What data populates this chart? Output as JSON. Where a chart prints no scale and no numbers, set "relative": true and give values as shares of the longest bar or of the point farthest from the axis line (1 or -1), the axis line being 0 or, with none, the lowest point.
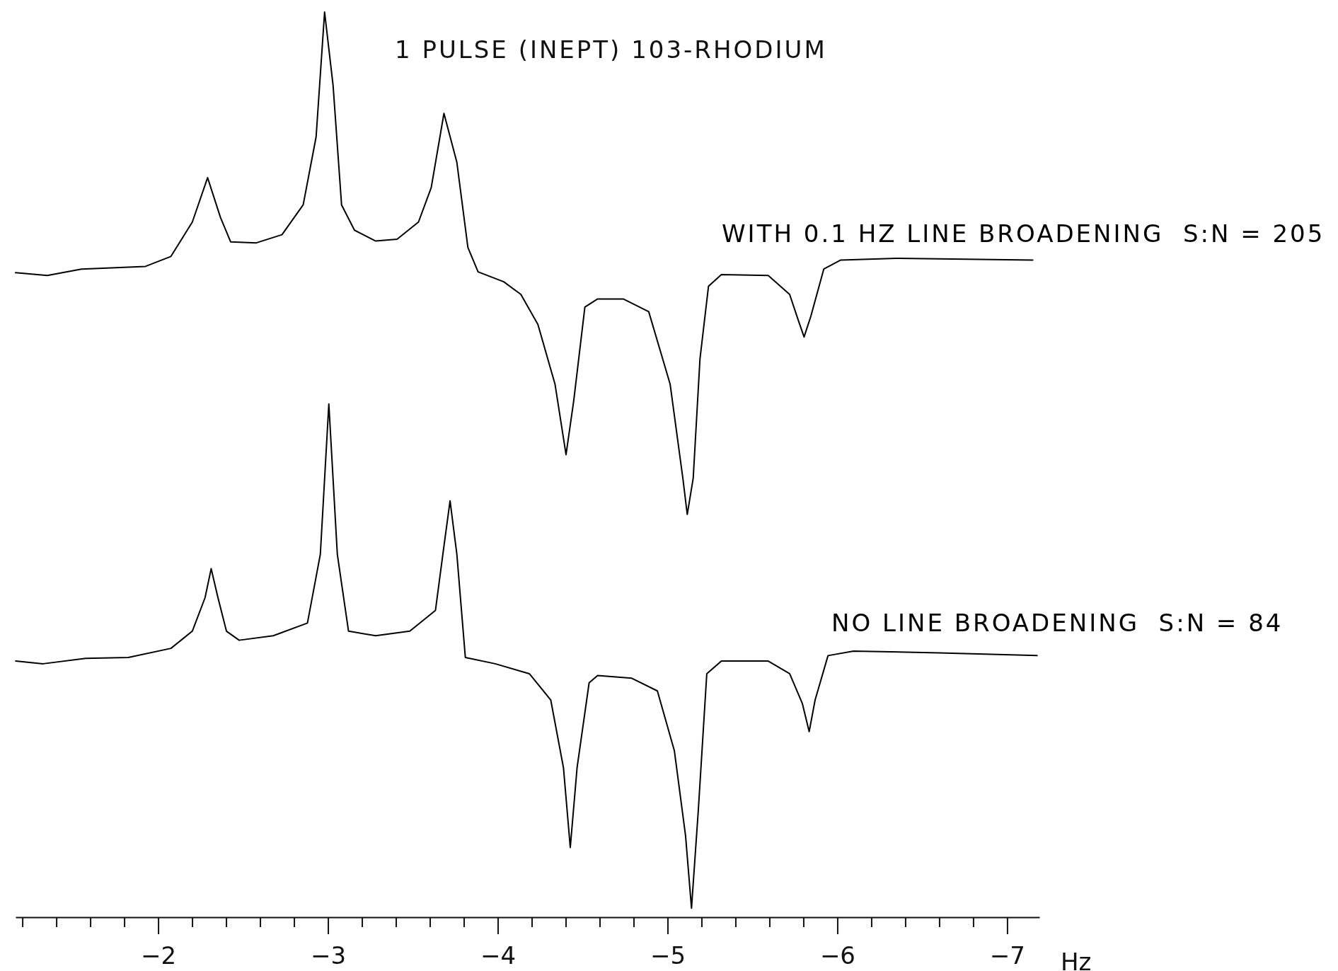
{
  "chart_data": {
    "type": "line",
    "title": "1 PULSE (INEPT) 103-RHODIUM",
    "xlabel": "Hz",
    "relative": true,
    "xlim": [
      -1.16,
      -7.19
    ],
    "xticks": [
      {
        "value": -1.2,
        "label": null
      },
      {
        "value": -1.4,
        "label": null
      },
      {
        "value": -1.6,
        "label": null
      },
      {
        "value": -1.8,
        "label": null
      },
      {
        "value": -2,
        "label": "−2"
      },
      {
        "value": -2.2,
        "label": null
      },
      {
        "value": -2.4,
        "label": null
      },
      {
        "value": -2.6,
        "label": null
      },
      {
        "value": -2.8,
        "label": null
      },
      {
        "value": -3,
        "label": "−3"
      },
      {
        "value": -3.2,
        "label": null
      },
      {
        "value": -3.4,
        "label": null
      },
      {
        "value": -3.6,
        "label": null
      },
      {
        "value": -3.8,
        "label": null
      },
      {
        "value": -4,
        "label": "−4"
      },
      {
        "value": -4.2,
        "label": null
      },
      {
        "value": -4.4,
        "label": null
      },
      {
        "value": -4.6,
        "label": null
      },
      {
        "value": -4.8,
        "label": null
      },
      {
        "value": -5,
        "label": "−5"
      },
      {
        "value": -5.2,
        "label": null
      },
      {
        "value": -5.4,
        "label": null
      },
      {
        "value": -5.6,
        "label": null
      },
      {
        "value": -5.8,
        "label": null
      },
      {
        "value": -6,
        "label": "−6"
      },
      {
        "value": -6.2,
        "label": null
      },
      {
        "value": -6.4,
        "label": null
      },
      {
        "value": -6.6,
        "label": null
      },
      {
        "value": -6.8,
        "label": null
      },
      {
        "value": -7,
        "label": "−7"
      }
    ],
    "series": [
      {
        "name": "WITH 0.1 HZ LINE BROADENING  S:N = 205",
        "color": "#000000",
        "x": [
          -1.16,
          -1.347,
          -1.548,
          -1.925,
          -2.075,
          -2.201,
          -2.291,
          -2.367,
          -2.427,
          -2.578,
          -2.729,
          -2.854,
          -2.93,
          -2.98,
          -3.03,
          -3.08,
          -3.156,
          -3.281,
          -3.407,
          -3.533,
          -3.608,
          -3.683,
          -3.759,
          -3.824,
          -3.884,
          -4.035,
          -4.136,
          -4.236,
          -4.337,
          -4.402,
          -4.447,
          -4.513,
          -4.588,
          -4.739,
          -4.889,
          -5.015,
          -5.09,
          -5.116,
          -5.151,
          -5.191,
          -5.241,
          -5.317,
          -5.593,
          -5.719,
          -5.769,
          -5.804,
          -5.844,
          -5.92,
          -6.02,
          -6.347,
          -7.151
        ],
        "values": [
          0.712,
          0.709,
          0.716,
          0.719,
          0.73,
          0.768,
          0.817,
          0.773,
          0.746,
          0.745,
          0.754,
          0.787,
          0.862,
          1,
          0.919,
          0.787,
          0.759,
          0.747,
          0.749,
          0.768,
          0.806,
          0.888,
          0.834,
          0.74,
          0.713,
          0.702,
          0.688,
          0.655,
          0.589,
          0.511,
          0.57,
          0.674,
          0.683,
          0.683,
          0.669,
          0.589,
          0.485,
          0.445,
          0.485,
          0.617,
          0.697,
          0.71,
          0.709,
          0.688,
          0.66,
          0.641,
          0.664,
          0.716,
          0.726,
          0.728,
          0.726
        ]
      },
      {
        "name": "NO LINE BROADENING  S:N = 84",
        "color": "#000000",
        "x": [
          -1.161,
          -1.322,
          -1.573,
          -1.824,
          -2.075,
          -2.201,
          -2.276,
          -2.312,
          -2.352,
          -2.402,
          -2.477,
          -2.678,
          -2.879,
          -2.955,
          -3.005,
          -3.055,
          -3.121,
          -3.281,
          -3.482,
          -3.633,
          -3.683,
          -3.719,
          -3.759,
          -3.809,
          -3.985,
          -4.186,
          -4.312,
          -4.387,
          -4.427,
          -4.467,
          -4.538,
          -4.588,
          -4.789,
          -4.94,
          -5.04,
          -5.106,
          -5.141,
          -5.181,
          -5.231,
          -5.317,
          -5.593,
          -5.719,
          -5.794,
          -5.834,
          -5.869,
          -5.945,
          -6.095,
          -6.598,
          -7.176
        ],
        "values": [
          0.283,
          0.28,
          0.286,
          0.287,
          0.297,
          0.316,
          0.353,
          0.385,
          0.353,
          0.316,
          0.306,
          0.311,
          0.325,
          0.401,
          0.567,
          0.401,
          0.316,
          0.311,
          0.316,
          0.339,
          0.41,
          0.46,
          0.401,
          0.287,
          0.28,
          0.269,
          0.24,
          0.165,
          0.077,
          0.165,
          0.259,
          0.267,
          0.264,
          0.25,
          0.184,
          0.09,
          0.01,
          0.118,
          0.269,
          0.283,
          0.283,
          0.269,
          0.236,
          0.205,
          0.24,
          0.289,
          0.294,
          0.292,
          0.289
        ]
      }
    ]
  }
}
